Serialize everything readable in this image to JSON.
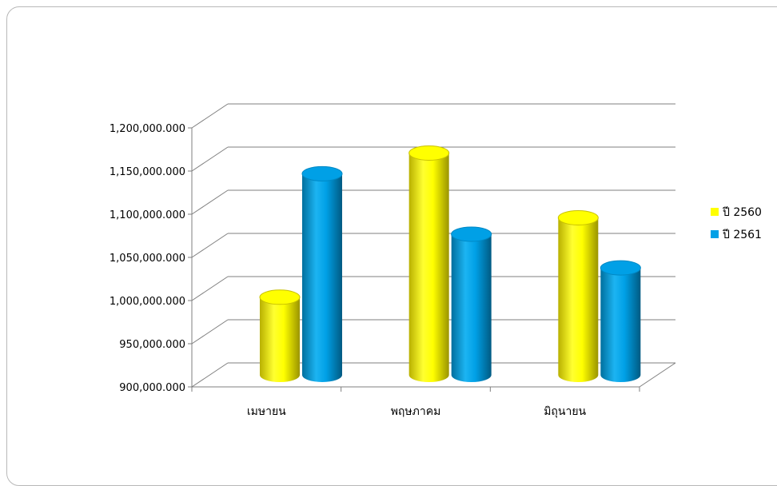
{
  "chart_data": {
    "type": "bar",
    "title": "",
    "xlabel": "",
    "ylabel": "",
    "categories": [
      "เมษายน",
      "พฤษภาคม",
      "มิถุนายน"
    ],
    "series": [
      {
        "name": "ปี 2560",
        "color": "#ffff00",
        "values": [
          990000,
          1157000,
          1082000
        ]
      },
      {
        "name": "ปี 2561",
        "color": "#00a0e6",
        "values": [
          1133000,
          1063000,
          1024000
        ]
      }
    ],
    "ylim": [
      900000,
      1200000
    ],
    "yticks": [
      900000,
      950000,
      1000000,
      1050000,
      1100000,
      1150000,
      1200000
    ],
    "ytick_labels": [
      "900,000.000",
      "950,000.000",
      "1,000,000.000",
      "1,050,000.000",
      "1,100,000.000",
      "1,150,000.000",
      "1,200,000.000"
    ],
    "grid": true,
    "legend_position": "right",
    "style": "3d-cylinder"
  }
}
